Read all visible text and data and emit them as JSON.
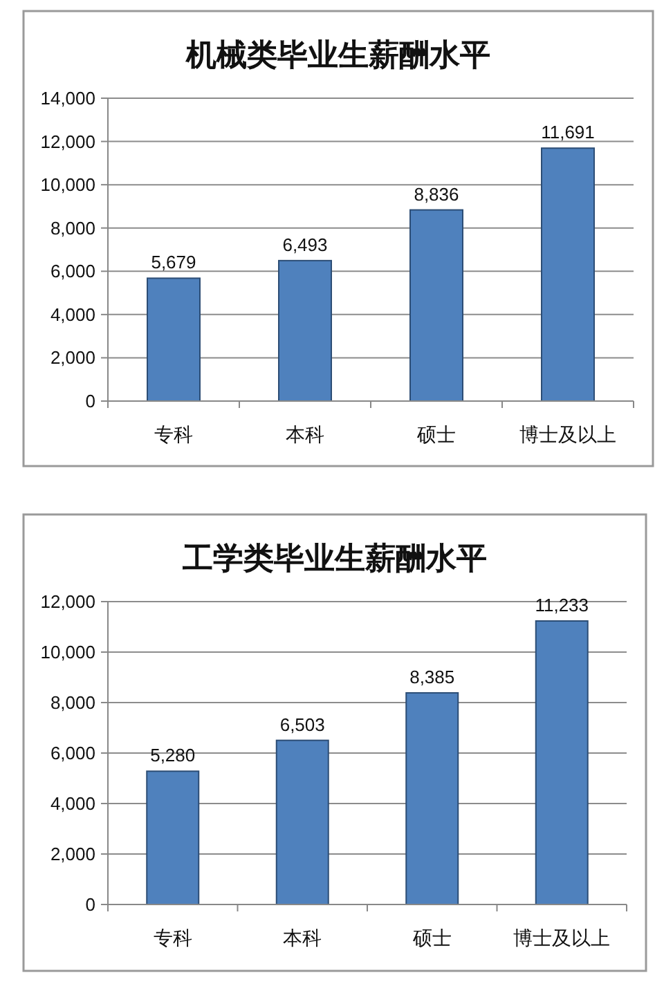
{
  "chart_data": [
    {
      "type": "bar",
      "title": "机械类毕业生薪酬水平",
      "categories": [
        "专科",
        "本科",
        "硕士",
        "博士及以上"
      ],
      "values": [
        5679,
        6493,
        8836,
        11691
      ],
      "value_labels": [
        "5,679",
        "6,493",
        "8,836",
        "11,691"
      ],
      "color": "#4f81bd",
      "ylim": [
        0,
        14000
      ],
      "yticks": [
        0,
        {
          "value": 2000,
          "label": "2,000"
        },
        {
          "value": 4000,
          "label": "4,000"
        },
        {
          "value": 6000,
          "label": "6,000"
        },
        {
          "value": 8000,
          "label": "8,000"
        },
        {
          "value": 10000,
          "label": "10,000"
        },
        {
          "value": 12000,
          "label": "12,000"
        },
        {
          "value": 14000,
          "label": "14,000"
        }
      ],
      "grid": "y"
    },
    {
      "type": "bar",
      "title": "工学类毕业生薪酬水平",
      "categories": [
        "专科",
        "本科",
        "硕士",
        "博士及以上"
      ],
      "values": [
        5280,
        6503,
        8385,
        11233
      ],
      "value_labels": [
        "5,280",
        "6,503",
        "8,385",
        "11,233"
      ],
      "color": "#4f81bd",
      "ylim": [
        0,
        12000
      ],
      "yticks": [
        0,
        {
          "value": 2000,
          "label": "2,000"
        },
        {
          "value": 4000,
          "label": "4,000"
        },
        {
          "value": 6000,
          "label": "6,000"
        },
        {
          "value": 8000,
          "label": "8,000"
        },
        {
          "value": 10000,
          "label": "10,000"
        },
        {
          "value": 12000,
          "label": "12,000"
        }
      ],
      "grid": "y"
    }
  ]
}
